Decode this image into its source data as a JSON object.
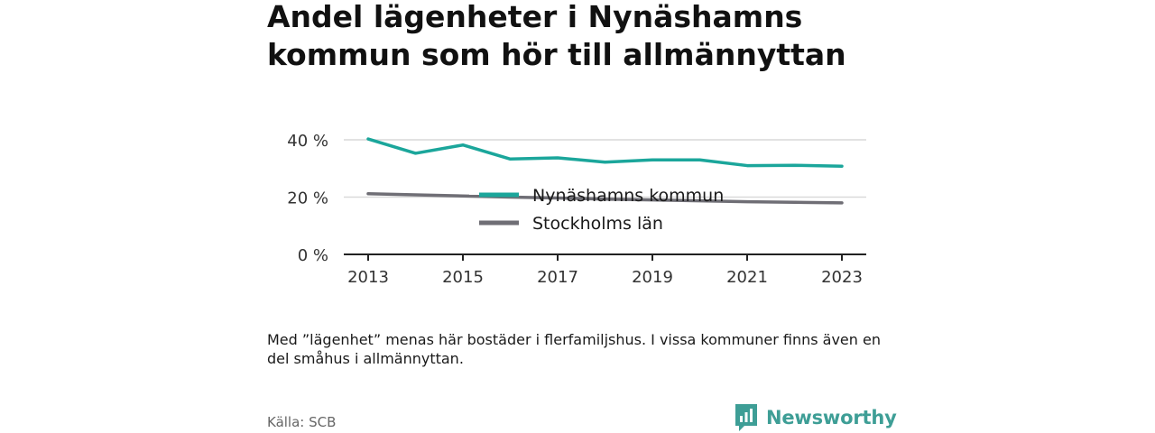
{
  "title": "Andel lägenheter i Nynäshamns kommun som hör till allmännyttan",
  "note": "Med ”lägenhet” menas här bostäder i flerfamiljshus. I vissa kommuner finns även en del småhus i allmännyttan.",
  "source": "Källa: SCB",
  "brand": "Newsworthy",
  "colors": {
    "nynashamn": "#1ba69b",
    "stockholm": "#6f6e75",
    "grid": "#d9d9d9",
    "axis": "#222222",
    "brand": "#3e9e96"
  },
  "chart_data": {
    "type": "line",
    "x": [
      2013,
      2014,
      2015,
      2016,
      2017,
      2018,
      2019,
      2020,
      2021,
      2022,
      2023
    ],
    "x_ticks": [
      "2013",
      "2015",
      "2017",
      "2019",
      "2021",
      "2023"
    ],
    "y_ticks": [
      "0 %",
      "20 %",
      "40 %"
    ],
    "ylim": [
      0,
      40
    ],
    "grid": true,
    "legend_placement": "center",
    "series": [
      {
        "name": "Nynäshamns kommun",
        "color_key": "nynashamn",
        "values": [
          40.3,
          35.3,
          38.2,
          33.3,
          33.7,
          32.2,
          33.0,
          33.0,
          31.0,
          31.1,
          30.8
        ]
      },
      {
        "name": "Stockholms län",
        "color_key": "stockholm",
        "values": [
          21.2,
          20.8,
          20.4,
          20.0,
          19.7,
          19.3,
          19.0,
          18.7,
          18.4,
          18.2,
          18.0
        ]
      }
    ]
  }
}
